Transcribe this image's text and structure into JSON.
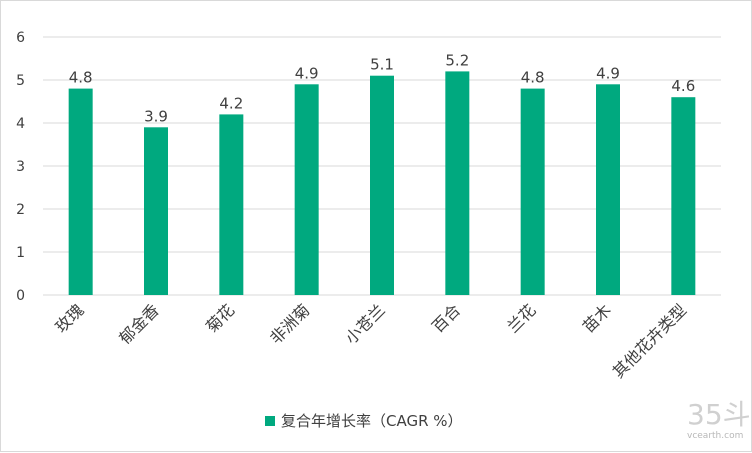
{
  "chart_data": {
    "type": "bar",
    "categories": [
      "玫瑰",
      "郁金香",
      "菊花",
      "非洲菊",
      "小苍兰",
      "百合",
      "兰花",
      "苗木",
      "其他花卉类型"
    ],
    "series": [
      {
        "name": "复合年增长率（CAGR %）",
        "values": [
          4.8,
          3.9,
          4.2,
          4.9,
          5.1,
          5.2,
          4.8,
          4.9,
          4.6
        ]
      }
    ],
    "value_labels": [
      "4.8",
      "3.9",
      "4.2",
      "4.9",
      "5.1",
      "5.2",
      "4.8",
      "4.9",
      "4.6"
    ],
    "y_ticks": [
      "0",
      "1",
      "2",
      "3",
      "4",
      "5",
      "6"
    ],
    "ylim": [
      0,
      6
    ],
    "grid": true,
    "legend_position": "bottom",
    "colors": {
      "bar": "#00A97F",
      "grid": "#d9d9d9",
      "text": "#404040"
    }
  },
  "watermark": {
    "main": "35斗",
    "sub": "vcearth.com"
  }
}
